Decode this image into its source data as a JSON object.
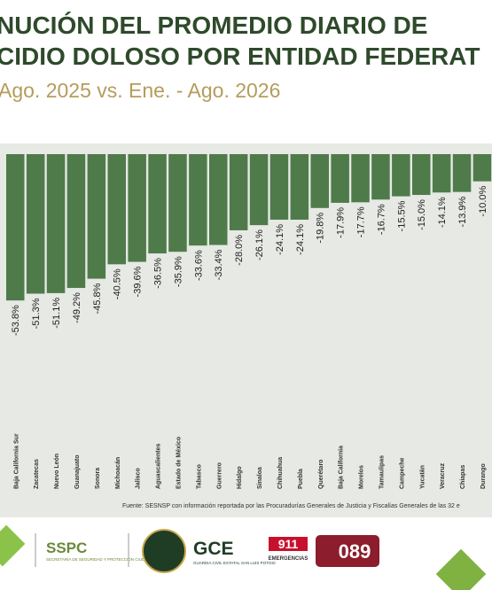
{
  "chart_data": {
    "type": "bar",
    "title": [
      "NUCIÓN DEL PROMEDIO DIARIO DE",
      "CIDIO DOLOSO POR ENTIDAD FEDERAT"
    ],
    "subtitle": "Ago. 2025 vs. Ene. - Ago. 2026",
    "categories": [
      "Baja California Sur",
      "Zacatecas",
      "Nuevo León",
      "Guanajuato",
      "Sonora",
      "Michoacán",
      "Jalisco",
      "Aguascalientes",
      "Estado de México",
      "Tabasco",
      "Guerrero",
      "Hidalgo",
      "Sinaloa",
      "Chihuahua",
      "Puebla",
      "Querétaro",
      "Baja California",
      "Morelos",
      "Tamaulipas",
      "Campeche",
      "Yucatán",
      "Veracruz",
      "Chiapas",
      "Durango"
    ],
    "values": [
      -53.8,
      -51.3,
      -51.1,
      -49.2,
      -45.8,
      -40.5,
      -39.6,
      -36.5,
      -35.9,
      -33.6,
      -33.4,
      -28.0,
      -26.1,
      -24.1,
      -24.1,
      -19.8,
      -17.9,
      -17.7,
      -16.7,
      -15.5,
      -15.0,
      -14.1,
      -13.9,
      -10.0
    ],
    "value_labels": [
      "-53.8%",
      "-51.3%",
      "-51.1%",
      "-49.2%",
      "-45.8%",
      "-40.5%",
      "-39.6%",
      "-36.5%",
      "-35.9%",
      "-33.6%",
      "-33.4%",
      "-28.0%",
      "-26.1%",
      "-24.1%",
      "-24.1%",
      "-19.8%",
      "-17.9%",
      "-17.7%",
      "-16.7%",
      "-15.5%",
      "-15.0%",
      "-14.1%",
      "-13.9%",
      "-10.0%"
    ],
    "color": "#4f7b4b",
    "source": "Fuente: SESNSP con información reportada por las Procuradurías Generales de Justicia y Fiscalías Generales de las 32 e"
  },
  "footer": {
    "sspc": "SSPC",
    "sspc_sub": "SECRETARÍA DE SEGURIDAD Y PROTECCIÓN CIUDADANA",
    "gce": "GCE",
    "gce_sub": "GUARDIA CIVIL ESTATAL SAN LUIS POTOSÍ",
    "n911": "911",
    "n911_sub": "EMERGENCIAS",
    "n089": "089"
  }
}
